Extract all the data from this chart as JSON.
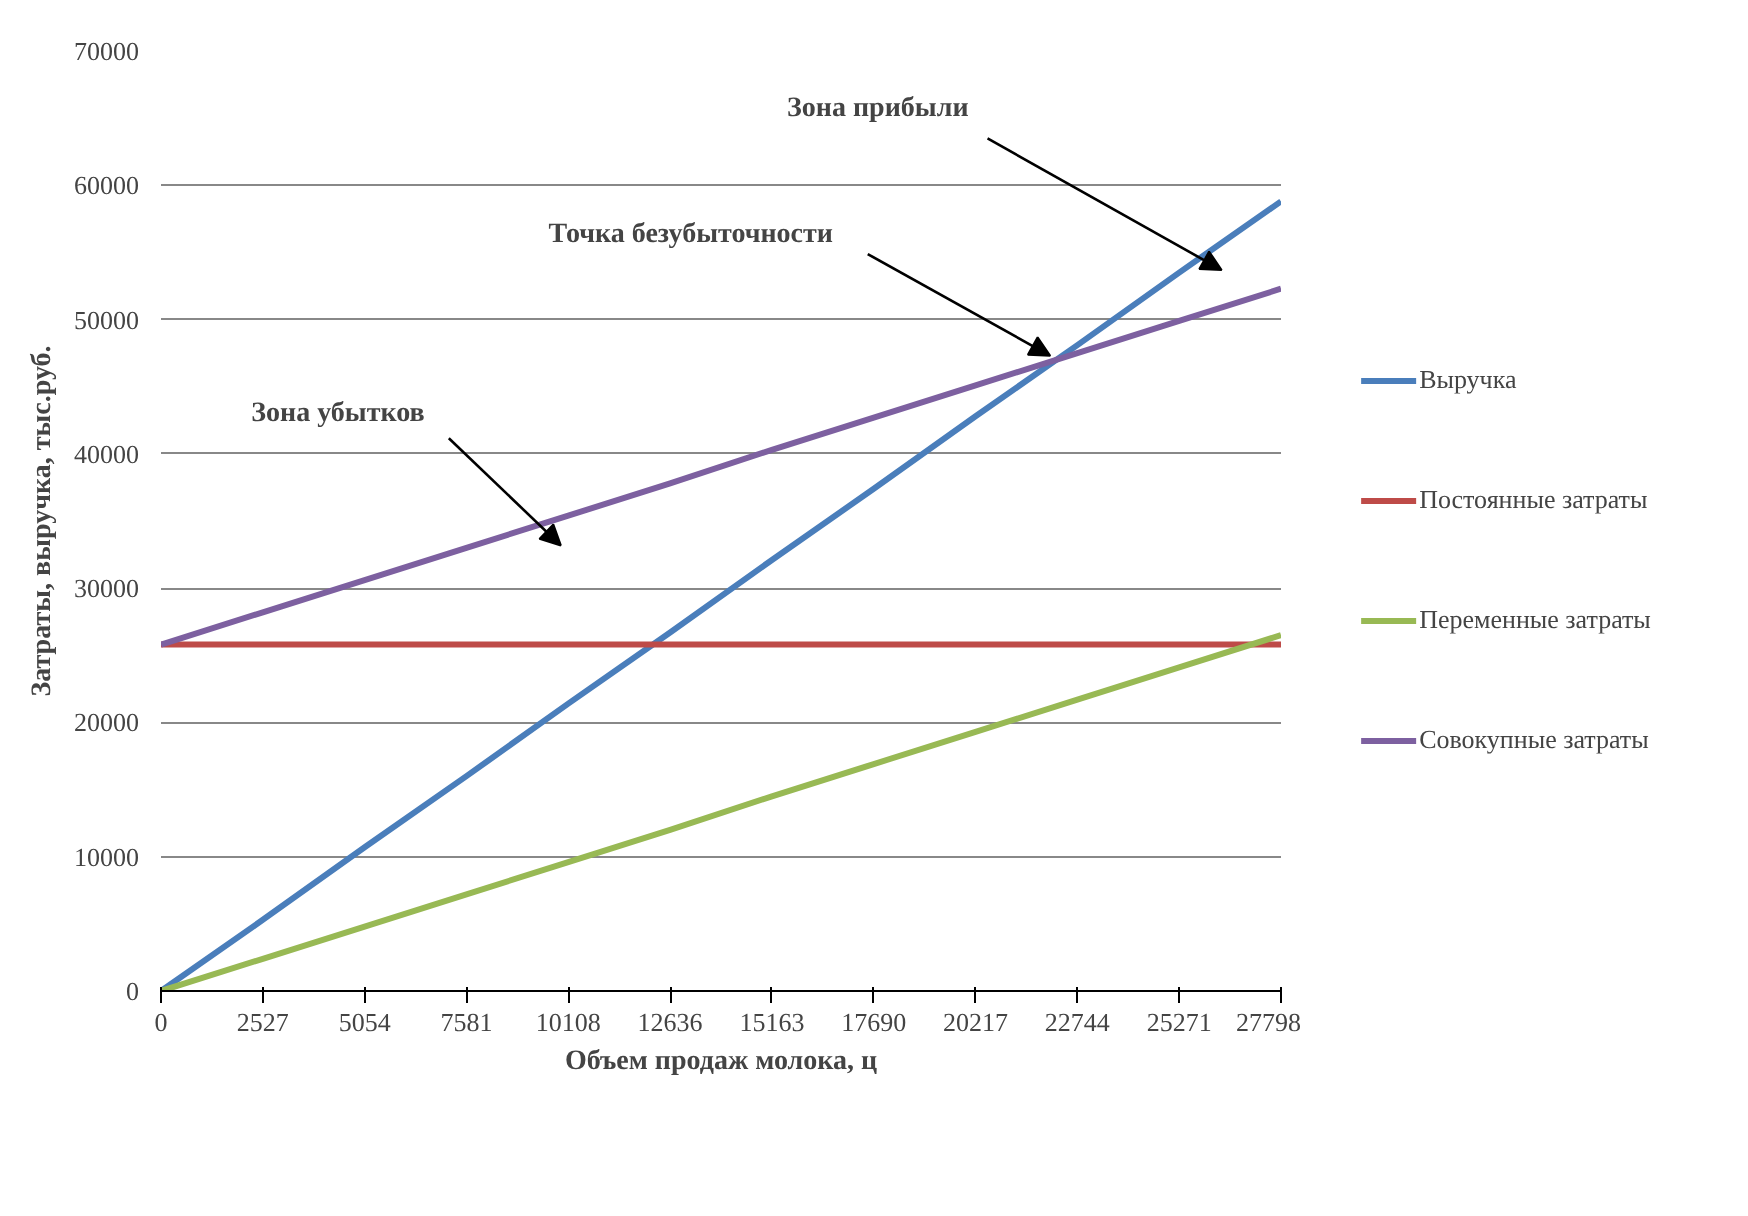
{
  "chart_data": {
    "type": "line",
    "xlabel": "Объем продаж молока, ц",
    "ylabel": "Затраты, выручка, тыс.руб.",
    "x": [
      0,
      2527,
      5054,
      7581,
      10108,
      12636,
      15163,
      17690,
      20217,
      22744,
      25271,
      27798
    ],
    "xlim": [
      0,
      27798
    ],
    "xticks": [
      0,
      2527,
      5054,
      7581,
      10108,
      12636,
      15163,
      17690,
      20217,
      22744,
      25271,
      27798
    ],
    "ylim": [
      0,
      70000
    ],
    "yticks": [
      0,
      10000,
      20000,
      30000,
      40000,
      50000,
      60000,
      70000
    ],
    "grid": "y",
    "legend": "right",
    "marker": "none",
    "line_style": "solid",
    "series": [
      {
        "name": "Выручка",
        "color": "#4a7ebb",
        "values": [
          0,
          5300,
          10700,
          16000,
          21400,
          26700,
          32100,
          37400,
          42800,
          48100,
          53500,
          58800
        ]
      },
      {
        "name": "Постоянные затраты",
        "color": "#be4b48",
        "values": [
          25800,
          25800,
          25800,
          25800,
          25800,
          25800,
          25800,
          25800,
          25800,
          25800,
          25800,
          25800
        ]
      },
      {
        "name": "Переменные затраты",
        "color": "#98b954",
        "values": [
          0,
          2400,
          4800,
          7200,
          9600,
          12000,
          14500,
          16900,
          19300,
          21700,
          24100,
          26500
        ]
      },
      {
        "name": "Совокупные затраты",
        "color": "#7d60a0",
        "values": [
          25800,
          28200,
          30600,
          33000,
          35400,
          37800,
          40300,
          42700,
          45100,
          47500,
          49900,
          52300
        ]
      }
    ],
    "annotations": [
      "Зона прибыли",
      {
        "text": "Точка безубыточности",
        "x": 22070,
        "y": 47300
      },
      "Зона убытков"
    ]
  }
}
